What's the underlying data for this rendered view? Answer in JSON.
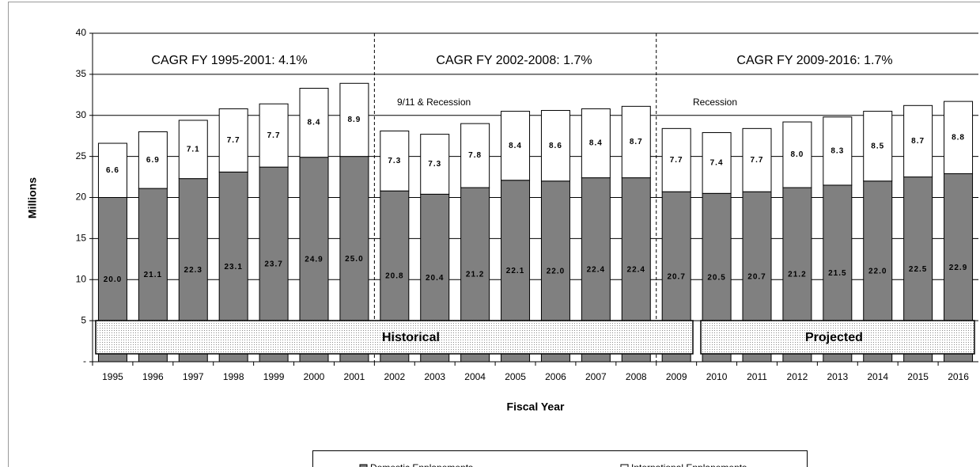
{
  "chart_data": {
    "type": "stacked_bar",
    "y_label": "Millions",
    "x_label": "Fiscal Year",
    "categories": [
      "1995",
      "1996",
      "1997",
      "1998",
      "1999",
      "2000",
      "2001",
      "2002",
      "2003",
      "2004",
      "2005",
      "2006",
      "2007",
      "2008",
      "2009",
      "2010",
      "2011",
      "2012",
      "2013",
      "2014",
      "2015",
      "2016"
    ],
    "series": [
      {
        "name": "Domestic Enplanements",
        "color": "#808080",
        "values": [
          20.0,
          21.1,
          22.3,
          23.1,
          23.7,
          24.9,
          25.0,
          20.8,
          20.4,
          21.2,
          22.1,
          22.0,
          22.4,
          22.4,
          20.7,
          20.5,
          20.7,
          21.2,
          21.5,
          22.0,
          22.5,
          22.9
        ],
        "value_labels": [
          "20.0",
          "21.1",
          "22.3",
          "23.1",
          "23.7",
          "24.9",
          "25.0",
          "20.8",
          "20.4",
          "21.2",
          "22.1",
          "22.0",
          "22.4",
          "22.4",
          "20.7",
          "20.5",
          "20.7",
          "21.2",
          "21.5",
          "22.0",
          "22.5",
          "22.9"
        ]
      },
      {
        "name": "International Enplanements",
        "color": "#ffffff",
        "values": [
          6.6,
          6.9,
          7.1,
          7.7,
          7.7,
          8.4,
          8.9,
          7.3,
          7.3,
          7.8,
          8.4,
          8.6,
          8.4,
          8.7,
          7.7,
          7.4,
          7.7,
          8.0,
          8.3,
          8.5,
          8.7,
          8.8
        ],
        "value_labels": [
          "6.6",
          "6.9",
          "7.1",
          "7.7",
          "7.7",
          "8.4",
          "8.9",
          "7.3",
          "7.3",
          "7.8",
          "8.4",
          "8.6",
          "8.4",
          "8.7",
          "7.7",
          "7.4",
          "7.7",
          "8.0",
          "8.3",
          "8.5",
          "8.7",
          "8.8"
        ]
      }
    ],
    "ylim": [
      0,
      40
    ],
    "yticks": [
      {
        "value": 0,
        "label": "-"
      },
      5,
      10,
      15,
      20,
      25,
      30,
      35,
      40
    ],
    "grid": true,
    "legend": "bottom",
    "annotations": [
      "CAGR FY 1995-2001: 4.1%",
      "CAGR FY 2002-2008: 1.7%",
      "CAGR FY 2009-2016: 1.7%",
      "9/11 & Recession",
      "Recession",
      "Historical",
      "Projected"
    ]
  }
}
